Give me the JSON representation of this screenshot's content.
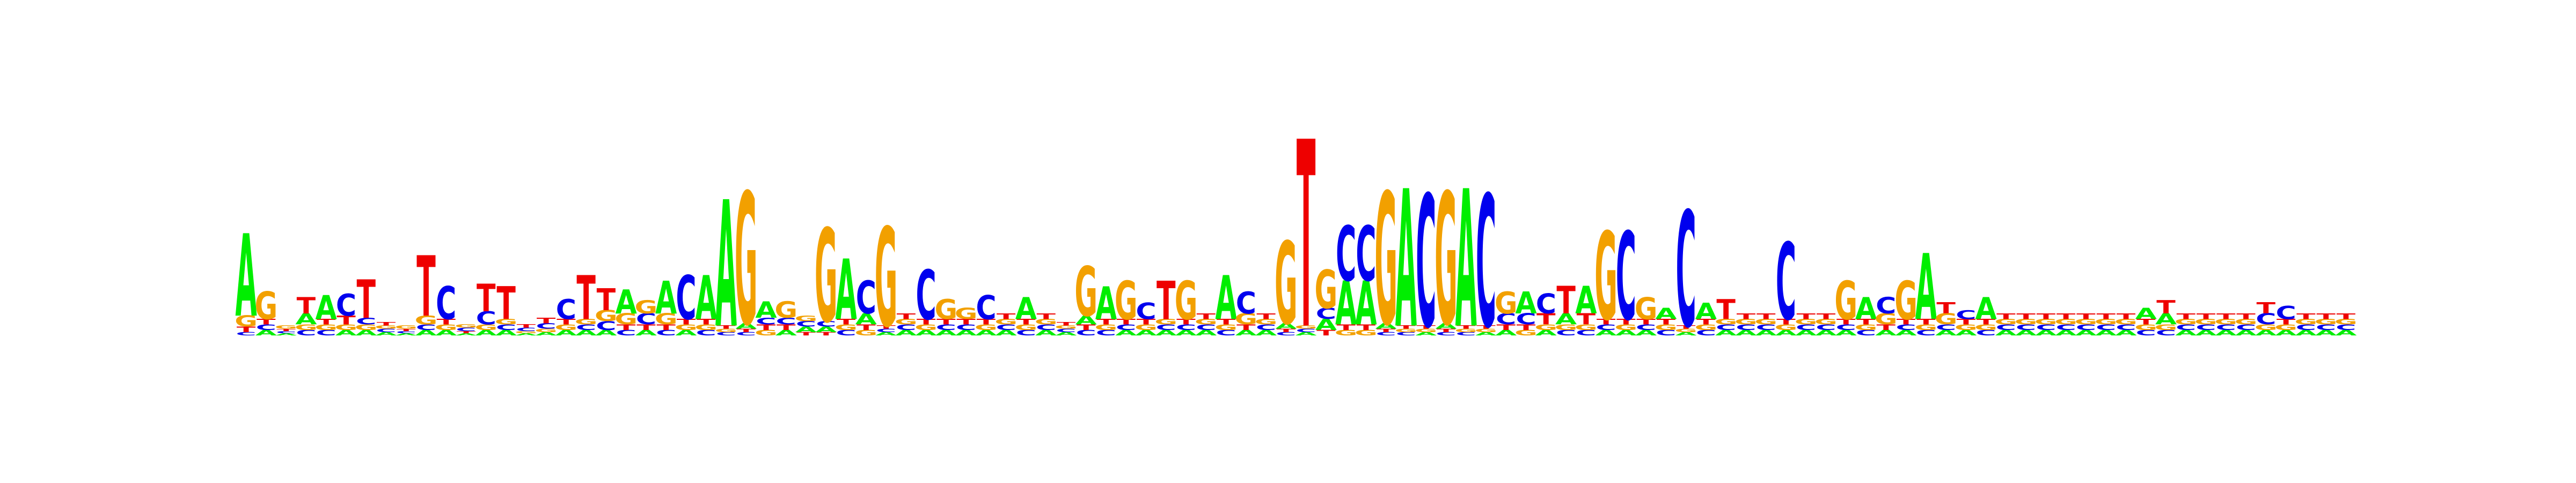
{
  "colors": {
    "A": "#00ee00",
    "C": "#0000ee",
    "G": "#f2a000",
    "T": "#ee0000",
    "background": "#ffffff"
  },
  "chart_data": {
    "type": "sequence-logo",
    "title": "",
    "xlabel": "",
    "ylabel": "",
    "grid": false,
    "legend": "none",
    "alphabet": [
      "A",
      "C",
      "G",
      "T"
    ],
    "positions": [
      {
        "A": 0.75,
        "C": 0.03,
        "G": 0.1,
        "T": 0.05
      },
      {
        "A": 0.05,
        "C": 0.05,
        "G": 0.25,
        "T": 0.05
      },
      {
        "A": 0.02,
        "C": 0.02,
        "G": 0.03,
        "T": 0.02
      },
      {
        "A": 0.1,
        "C": 0.05,
        "G": 0.05,
        "T": 0.15
      },
      {
        "A": 0.22,
        "C": 0.05,
        "G": 0.05,
        "T": 0.05
      },
      {
        "A": 0.05,
        "C": 0.2,
        "G": 0.05,
        "T": 0.08
      },
      {
        "A": 0.05,
        "C": 0.06,
        "G": 0.05,
        "T": 0.35
      },
      {
        "A": 0.03,
        "C": 0.03,
        "G": 0.03,
        "T": 0.03
      },
      {
        "A": 0.02,
        "C": 0.02,
        "G": 0.03,
        "T": 0.02
      },
      {
        "A": 0.05,
        "C": 0.05,
        "G": 0.08,
        "T": 0.55
      },
      {
        "A": 0.05,
        "C": 0.3,
        "G": 0.05,
        "T": 0.05
      },
      {
        "A": 0.02,
        "C": 0.03,
        "G": 0.03,
        "T": 0.02
      },
      {
        "A": 0.05,
        "C": 0.12,
        "G": 0.05,
        "T": 0.25
      },
      {
        "A": 0.05,
        "C": 0.05,
        "G": 0.05,
        "T": 0.3
      },
      {
        "A": 0.02,
        "C": 0.03,
        "G": 0.02,
        "T": 0.03
      },
      {
        "A": 0.03,
        "C": 0.05,
        "G": 0.03,
        "T": 0.05
      },
      {
        "A": 0.05,
        "C": 0.18,
        "G": 0.05,
        "T": 0.05
      },
      {
        "A": 0.05,
        "C": 0.05,
        "G": 0.05,
        "T": 0.4
      },
      {
        "A": 0.05,
        "C": 0.08,
        "G": 0.1,
        "T": 0.2
      },
      {
        "A": 0.22,
        "C": 0.05,
        "G": 0.1,
        "T": 0.05
      },
      {
        "A": 0.05,
        "C": 0.1,
        "G": 0.12,
        "T": 0.05
      },
      {
        "A": 0.3,
        "C": 0.05,
        "G": 0.1,
        "T": 0.05
      },
      {
        "A": 0.05,
        "C": 0.4,
        "G": 0.05,
        "T": 0.05
      },
      {
        "A": 0.4,
        "C": 0.05,
        "G": 0.05,
        "T": 0.05
      },
      {
        "A": 1.15,
        "C": 0.03,
        "G": 0.03,
        "T": 0.03
      },
      {
        "A": 0.05,
        "C": 0.03,
        "G": 1.2,
        "T": 0.03
      },
      {
        "A": 0.15,
        "C": 0.06,
        "G": 0.05,
        "T": 0.05
      },
      {
        "A": 0.05,
        "C": 0.06,
        "G": 0.15,
        "T": 0.05
      },
      {
        "A": 0.05,
        "C": 0.05,
        "G": 0.05,
        "T": 0.03
      },
      {
        "A": 0.05,
        "C": 0.05,
        "G": 0.85,
        "T": 0.03
      },
      {
        "A": 0.55,
        "C": 0.05,
        "G": 0.05,
        "T": 0.05
      },
      {
        "A": 0.1,
        "C": 0.3,
        "G": 0.05,
        "T": 0.05
      },
      {
        "A": 0.03,
        "C": 0.03,
        "G": 0.9,
        "T": 0.03
      },
      {
        "A": 0.05,
        "C": 0.05,
        "G": 0.05,
        "T": 0.05
      },
      {
        "A": 0.05,
        "C": 0.45,
        "G": 0.05,
        "T": 0.05
      },
      {
        "A": 0.05,
        "C": 0.05,
        "G": 0.18,
        "T": 0.05
      },
      {
        "A": 0.05,
        "C": 0.05,
        "G": 0.1,
        "T": 0.05
      },
      {
        "A": 0.05,
        "C": 0.22,
        "G": 0.05,
        "T": 0.05
      },
      {
        "A": 0.05,
        "C": 0.05,
        "G": 0.05,
        "T": 0.05
      },
      {
        "A": 0.2,
        "C": 0.05,
        "G": 0.05,
        "T": 0.05
      },
      {
        "A": 0.05,
        "C": 0.05,
        "G": 0.05,
        "T": 0.05
      },
      {
        "A": 0.03,
        "C": 0.03,
        "G": 0.03,
        "T": 0.03
      },
      {
        "A": 0.08,
        "C": 0.05,
        "G": 0.45,
        "T": 0.05
      },
      {
        "A": 0.3,
        "C": 0.05,
        "G": 0.05,
        "T": 0.05
      },
      {
        "A": 0.05,
        "C": 0.05,
        "G": 0.35,
        "T": 0.05
      },
      {
        "A": 0.05,
        "C": 0.15,
        "G": 0.05,
        "T": 0.05
      },
      {
        "A": 0.05,
        "C": 0.05,
        "G": 0.05,
        "T": 0.35
      },
      {
        "A": 0.05,
        "C": 0.05,
        "G": 0.35,
        "T": 0.05
      },
      {
        "A": 0.05,
        "C": 0.05,
        "G": 0.05,
        "T": 0.05
      },
      {
        "A": 0.4,
        "C": 0.05,
        "G": 0.05,
        "T": 0.05
      },
      {
        "A": 0.05,
        "C": 0.2,
        "G": 0.1,
        "T": 0.05
      },
      {
        "A": 0.05,
        "C": 0.05,
        "G": 0.05,
        "T": 0.05
      },
      {
        "A": 0.05,
        "C": 0.03,
        "G": 0.75,
        "T": 0.03
      },
      {
        "A": 0.03,
        "C": 0.03,
        "G": 0.03,
        "T": 1.7
      },
      {
        "A": 0.1,
        "C": 0.1,
        "G": 0.35,
        "T": 0.05
      },
      {
        "A": 0.4,
        "C": 0.5,
        "G": 0.05,
        "T": 0.05
      },
      {
        "A": 0.4,
        "C": 0.5,
        "G": 0.05,
        "T": 0.05
      },
      {
        "A": 0.05,
        "C": 0.03,
        "G": 1.2,
        "T": 0.03
      },
      {
        "A": 1.25,
        "C": 0.03,
        "G": 0.03,
        "T": 0.03
      },
      {
        "A": 0.03,
        "C": 1.2,
        "G": 0.03,
        "T": 0.03
      },
      {
        "A": 0.05,
        "C": 0.03,
        "G": 1.2,
        "T": 0.03
      },
      {
        "A": 1.25,
        "C": 0.03,
        "G": 0.03,
        "T": 0.03
      },
      {
        "A": 0.03,
        "C": 1.2,
        "G": 0.03,
        "T": 0.03
      },
      {
        "A": 0.05,
        "C": 0.1,
        "G": 0.2,
        "T": 0.05
      },
      {
        "A": 0.2,
        "C": 0.1,
        "G": 0.05,
        "T": 0.05
      },
      {
        "A": 0.05,
        "C": 0.18,
        "G": 0.05,
        "T": 0.1
      },
      {
        "A": 0.1,
        "C": 0.05,
        "G": 0.05,
        "T": 0.25
      },
      {
        "A": 0.25,
        "C": 0.05,
        "G": 0.05,
        "T": 0.1
      },
      {
        "A": 0.05,
        "C": 0.05,
        "G": 0.8,
        "T": 0.05
      },
      {
        "A": 0.05,
        "C": 0.8,
        "G": 0.05,
        "T": 0.05
      },
      {
        "A": 0.05,
        "C": 0.05,
        "G": 0.2,
        "T": 0.05
      },
      {
        "A": 0.1,
        "C": 0.05,
        "G": 0.05,
        "T": 0.05
      },
      {
        "A": 0.03,
        "C": 1.05,
        "G": 0.03,
        "T": 0.03
      },
      {
        "A": 0.15,
        "C": 0.05,
        "G": 0.05,
        "T": 0.05
      },
      {
        "A": 0.05,
        "C": 0.05,
        "G": 0.05,
        "T": 0.18
      },
      {
        "A": 0.05,
        "C": 0.05,
        "G": 0.05,
        "T": 0.05
      },
      {
        "A": 0.05,
        "C": 0.05,
        "G": 0.05,
        "T": 0.05
      },
      {
        "A": 0.05,
        "C": 0.7,
        "G": 0.05,
        "T": 0.05
      },
      {
        "A": 0.05,
        "C": 0.05,
        "G": 0.05,
        "T": 0.05
      },
      {
        "A": 0.05,
        "C": 0.05,
        "G": 0.05,
        "T": 0.05
      },
      {
        "A": 0.05,
        "C": 0.05,
        "G": 0.35,
        "T": 0.05
      },
      {
        "A": 0.2,
        "C": 0.05,
        "G": 0.05,
        "T": 0.05
      },
      {
        "A": 0.05,
        "C": 0.15,
        "G": 0.1,
        "T": 0.05
      },
      {
        "A": 0.05,
        "C": 0.05,
        "G": 0.35,
        "T": 0.05
      },
      {
        "A": 0.6,
        "C": 0.05,
        "G": 0.05,
        "T": 0.05
      },
      {
        "A": 0.05,
        "C": 0.05,
        "G": 0.1,
        "T": 0.1
      },
      {
        "A": 0.05,
        "C": 0.08,
        "G": 0.05,
        "T": 0.05
      },
      {
        "A": 0.2,
        "C": 0.05,
        "G": 0.05,
        "T": 0.05
      },
      {
        "A": 0.05,
        "C": 0.05,
        "G": 0.05,
        "T": 0.05
      },
      {
        "A": 0.05,
        "C": 0.05,
        "G": 0.05,
        "T": 0.05
      },
      {
        "A": 0.05,
        "C": 0.05,
        "G": 0.05,
        "T": 0.05
      },
      {
        "A": 0.05,
        "C": 0.05,
        "G": 0.05,
        "T": 0.05
      },
      {
        "A": 0.05,
        "C": 0.05,
        "G": 0.05,
        "T": 0.05
      },
      {
        "A": 0.05,
        "C": 0.05,
        "G": 0.05,
        "T": 0.05
      },
      {
        "A": 0.05,
        "C": 0.05,
        "G": 0.05,
        "T": 0.05
      },
      {
        "A": 0.1,
        "C": 0.05,
        "G": 0.05,
        "T": 0.05
      },
      {
        "A": 0.1,
        "C": 0.05,
        "G": 0.05,
        "T": 0.12
      },
      {
        "A": 0.05,
        "C": 0.05,
        "G": 0.05,
        "T": 0.05
      },
      {
        "A": 0.05,
        "C": 0.05,
        "G": 0.05,
        "T": 0.05
      },
      {
        "A": 0.05,
        "C": 0.05,
        "G": 0.05,
        "T": 0.05
      },
      {
        "A": 0.05,
        "C": 0.05,
        "G": 0.05,
        "T": 0.05
      },
      {
        "A": 0.05,
        "C": 0.1,
        "G": 0.05,
        "T": 0.1
      },
      {
        "A": 0.05,
        "C": 0.12,
        "G": 0.05,
        "T": 0.05
      },
      {
        "A": 0.05,
        "C": 0.05,
        "G": 0.05,
        "T": 0.05
      },
      {
        "A": 0.05,
        "C": 0.05,
        "G": 0.05,
        "T": 0.05
      },
      {
        "A": 0.05,
        "C": 0.05,
        "G": 0.05,
        "T": 0.05
      }
    ]
  }
}
